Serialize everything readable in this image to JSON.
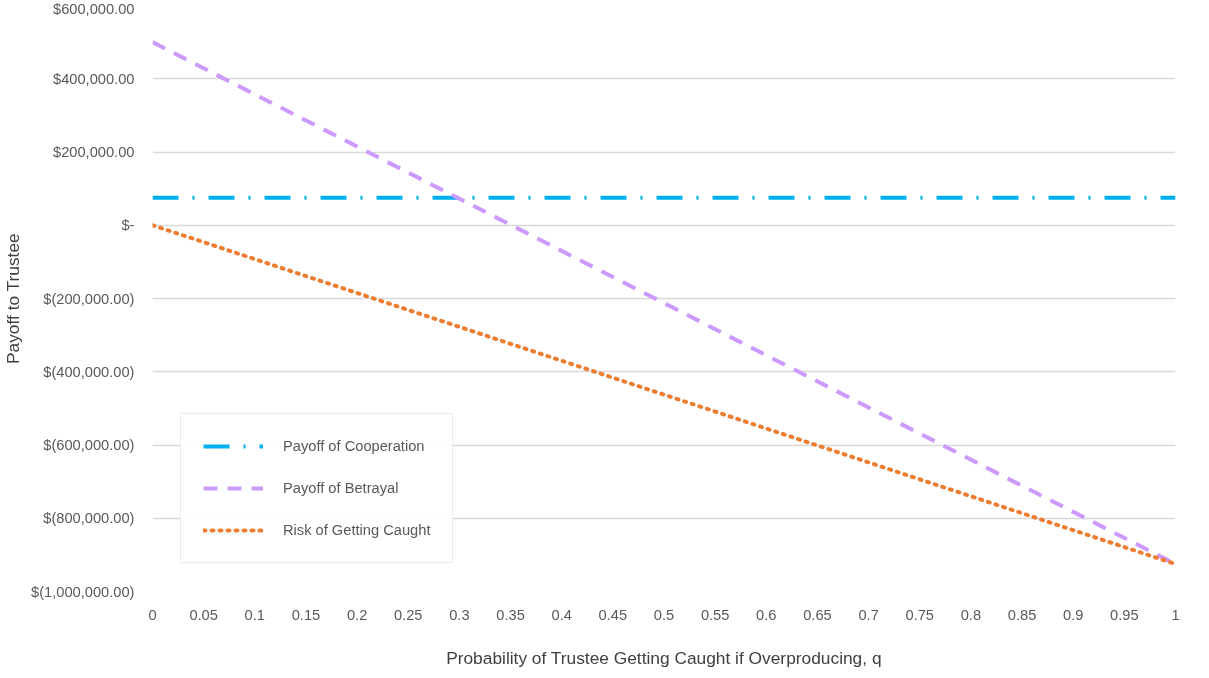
{
  "chart_data": {
    "type": "line",
    "xlabel": "Probability of Trustee Getting Caught if Overproducing, q",
    "ylabel": "Payoff to Trustee",
    "x": [
      0,
      1
    ],
    "series": [
      {
        "name": "Payoff of Cooperation",
        "color": "#00b0f0",
        "values": [
          75000,
          75000
        ],
        "line_style": "dashdot"
      },
      {
        "name": "Payoff of Betrayal",
        "color": "#cc99ff",
        "values": [
          500000,
          -925000
        ],
        "line_style": "dashed"
      },
      {
        "name": "Risk of Getting Caught",
        "color": "#ed7d31",
        "values": [
          0,
          -925000
        ],
        "line_style": "dotted"
      }
    ],
    "xlim": [
      0,
      1
    ],
    "xticks": [
      0,
      0.05,
      0.1,
      0.15,
      0.2,
      0.25,
      0.3,
      0.35,
      0.4,
      0.45,
      0.5,
      0.55,
      0.6,
      0.65,
      0.7,
      0.75,
      0.8,
      0.85,
      0.9,
      0.95,
      1
    ],
    "ylim": [
      -1000000,
      600000
    ],
    "yticks": [
      {
        "value": -1000000,
        "label": "$(1,000,000.00)"
      },
      {
        "value": -800000,
        "label": "$(800,000.00)"
      },
      {
        "value": -600000,
        "label": "$(600,000.00)"
      },
      {
        "value": -400000,
        "label": "$(400,000.00)"
      },
      {
        "value": -200000,
        "label": "$(200,000.00)"
      },
      {
        "value": 0,
        "label": "$-"
      },
      {
        "value": 200000,
        "label": "$200,000.00"
      },
      {
        "value": 400000,
        "label": "$400,000.00"
      },
      {
        "value": 600000,
        "label": "$600,000.00"
      }
    ],
    "grid": "y",
    "legend": "bottom left",
    "marker": "none"
  }
}
